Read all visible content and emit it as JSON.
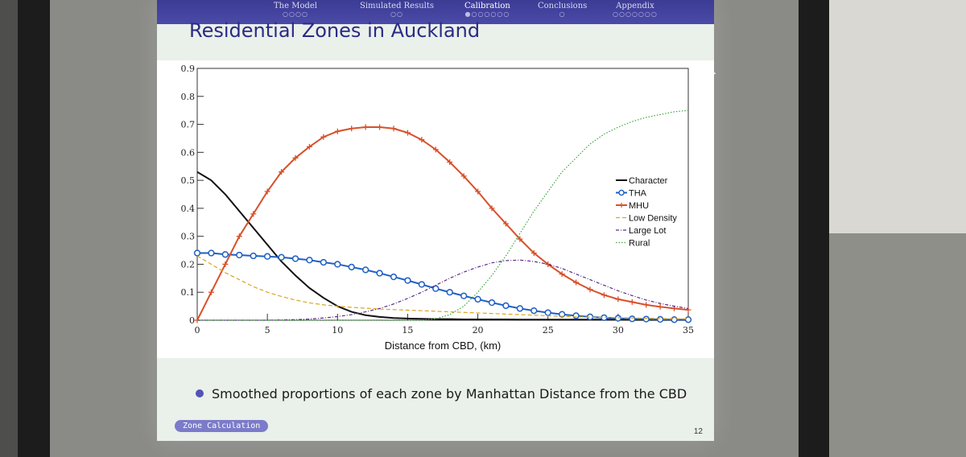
{
  "nav": {
    "items": [
      {
        "label": "The Model",
        "dots": "○○○○"
      },
      {
        "label": "Simulated Results",
        "dots": "○○"
      },
      {
        "label": "Calibration",
        "dots": "●○○○○○○"
      },
      {
        "label": "Conclusions",
        "dots": "○"
      },
      {
        "label": "Appendix",
        "dots": "○○○○○○○"
      }
    ]
  },
  "slide": {
    "title": "Residential Zones in Auckland",
    "bullet": "Smoothed proportions of each zone by Manhattan Distance from the CBD",
    "footer_tag": "Zone Calculation",
    "page_number": "12"
  },
  "colors": {
    "character": "#111111",
    "tha": "#1f5fc4",
    "mhu": "#d8502a",
    "low_density": "#d9a520",
    "large_lot": "#5a2a8a",
    "rural": "#3aa83a",
    "nav_bg": "#4040a0"
  },
  "chart_data": {
    "type": "line",
    "xlabel": "Distance from CBD, (km)",
    "ylabel": "",
    "xlim": [
      0,
      35
    ],
    "ylim": [
      0,
      0.9
    ],
    "x_ticks": [
      0,
      5,
      10,
      15,
      20,
      25,
      30,
      35
    ],
    "y_ticks": [
      0,
      0.1,
      0.2,
      0.3,
      0.4,
      0.5,
      0.6,
      0.7,
      0.8,
      0.9
    ],
    "legend_position": "right",
    "x": [
      0,
      1,
      2,
      3,
      4,
      5,
      6,
      7,
      8,
      9,
      10,
      11,
      12,
      13,
      14,
      15,
      16,
      17,
      18,
      19,
      20,
      21,
      22,
      23,
      24,
      25,
      26,
      27,
      28,
      29,
      30,
      31,
      32,
      33,
      34,
      35
    ],
    "series": [
      {
        "name": "Character",
        "marker": "none",
        "dash": "solid",
        "values": [
          0.53,
          0.5,
          0.45,
          0.39,
          0.33,
          0.27,
          0.21,
          0.16,
          0.115,
          0.08,
          0.05,
          0.03,
          0.018,
          0.012,
          0.008,
          0.006,
          0.005,
          0.004,
          0.004,
          0.003,
          0.003,
          0.003,
          0.003,
          0.002,
          0.002,
          0.002,
          0.002,
          0.002,
          0.002,
          0.002,
          0.002,
          0.001,
          0.001,
          0.001,
          0.001,
          0.001
        ]
      },
      {
        "name": "THA",
        "marker": "circle",
        "dash": "solid",
        "values": [
          0.24,
          0.24,
          0.235,
          0.233,
          0.23,
          0.228,
          0.225,
          0.22,
          0.215,
          0.207,
          0.2,
          0.19,
          0.18,
          0.168,
          0.155,
          0.142,
          0.128,
          0.113,
          0.1,
          0.087,
          0.075,
          0.063,
          0.052,
          0.042,
          0.034,
          0.027,
          0.021,
          0.016,
          0.012,
          0.009,
          0.007,
          0.005,
          0.004,
          0.003,
          0.002,
          0.002
        ]
      },
      {
        "name": "MHU",
        "marker": "plus",
        "dash": "solid",
        "values": [
          0.0,
          0.1,
          0.2,
          0.3,
          0.38,
          0.46,
          0.53,
          0.58,
          0.62,
          0.655,
          0.675,
          0.685,
          0.69,
          0.69,
          0.685,
          0.67,
          0.645,
          0.61,
          0.565,
          0.515,
          0.46,
          0.4,
          0.345,
          0.29,
          0.24,
          0.2,
          0.165,
          0.135,
          0.11,
          0.09,
          0.075,
          0.065,
          0.055,
          0.048,
          0.042,
          0.037
        ]
      },
      {
        "name": "Low Density",
        "marker": "none",
        "dash": "dashed",
        "values": [
          0.23,
          0.2,
          0.17,
          0.145,
          0.12,
          0.1,
          0.085,
          0.072,
          0.062,
          0.055,
          0.05,
          0.046,
          0.043,
          0.04,
          0.038,
          0.036,
          0.034,
          0.032,
          0.03,
          0.028,
          0.026,
          0.024,
          0.022,
          0.02,
          0.018,
          0.016,
          0.014,
          0.012,
          0.011,
          0.01,
          0.009,
          0.008,
          0.007,
          0.006,
          0.005,
          0.005
        ]
      },
      {
        "name": "Large Lot",
        "marker": "none",
        "dash": "dashdot",
        "values": [
          0.0,
          0.0,
          0.0,
          0.0,
          0.0,
          0.0,
          0.001,
          0.002,
          0.004,
          0.008,
          0.013,
          0.02,
          0.03,
          0.042,
          0.058,
          0.078,
          0.1,
          0.125,
          0.15,
          0.172,
          0.19,
          0.205,
          0.213,
          0.215,
          0.21,
          0.2,
          0.185,
          0.165,
          0.145,
          0.125,
          0.105,
          0.088,
          0.072,
          0.06,
          0.05,
          0.042
        ]
      },
      {
        "name": "Rural",
        "marker": "none",
        "dash": "dotted",
        "values": [
          0.0,
          0.0,
          0.0,
          0.0,
          0.0,
          0.0,
          0.0,
          0.0,
          0.0,
          0.0,
          0.0,
          0.0,
          0.0,
          0.0,
          0.0,
          0.0,
          0.0,
          0.005,
          0.02,
          0.05,
          0.1,
          0.16,
          0.23,
          0.31,
          0.39,
          0.46,
          0.53,
          0.58,
          0.63,
          0.665,
          0.69,
          0.71,
          0.725,
          0.735,
          0.745,
          0.75
        ]
      }
    ]
  }
}
